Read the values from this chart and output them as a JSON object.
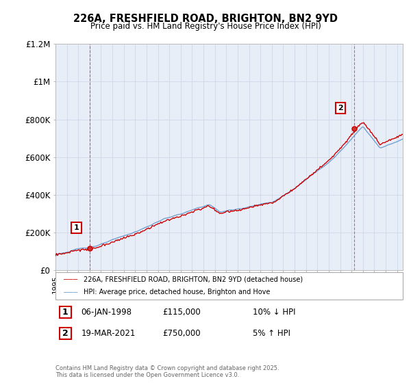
{
  "title_line1": "226A, FRESHFIELD ROAD, BRIGHTON, BN2 9YD",
  "title_line2": "Price paid vs. HM Land Registry's House Price Index (HPI)",
  "legend_red": "226A, FRESHFIELD ROAD, BRIGHTON, BN2 9YD (detached house)",
  "legend_blue": "HPI: Average price, detached house, Brighton and Hove",
  "footnote": "Contains HM Land Registry data © Crown copyright and database right 2025.\nThis data is licensed under the Open Government Licence v3.0.",
  "sale1_label": "1",
  "sale1_date": "06-JAN-1998",
  "sale1_price": 115000,
  "sale1_hpi_pct": "10% ↓ HPI",
  "sale2_label": "2",
  "sale2_date": "19-MAR-2021",
  "sale2_price": 750000,
  "sale2_hpi_pct": "5% ↑ HPI",
  "sale1_x": 1998.03,
  "sale2_x": 2021.21,
  "ymax": 1200000,
  "xmin": 1995.0,
  "xmax": 2025.5,
  "red_color": "#cc0000",
  "blue_color": "#6699cc",
  "grid_color": "#d0d8e8",
  "bg_color": "#ffffff",
  "plot_bg": "#e8eef8"
}
